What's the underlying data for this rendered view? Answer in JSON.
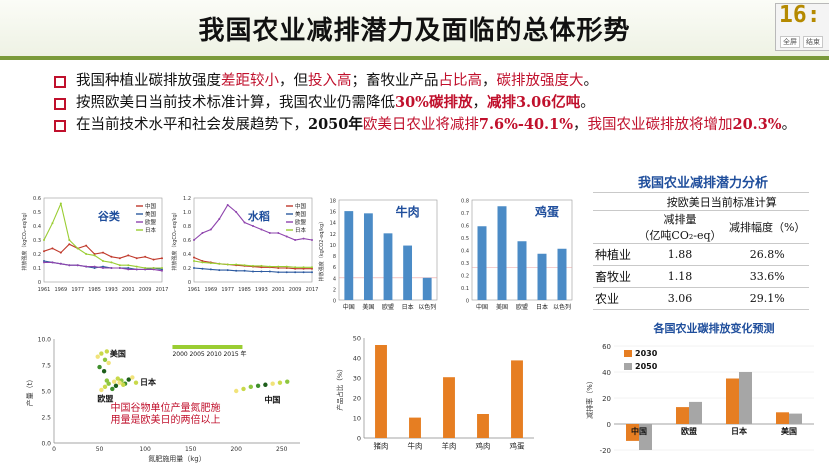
{
  "slide": {
    "title": "我国农业减排潜力及面临的总体形势",
    "clock": "16:",
    "clock_buttons": [
      "全屏",
      "结束"
    ],
    "bullets": [
      {
        "segments": [
          {
            "t": "我国种植业碳排放强度",
            "c": "n"
          },
          {
            "t": "差距较小",
            "c": "r"
          },
          {
            "t": "，但",
            "c": "n"
          },
          {
            "t": "投入高",
            "c": "r"
          },
          {
            "t": "；畜牧业产品",
            "c": "n"
          },
          {
            "t": "占比高",
            "c": "r"
          },
          {
            "t": "，",
            "c": "n"
          },
          {
            "t": "碳排放强度大",
            "c": "r"
          },
          {
            "t": "。",
            "c": "n"
          }
        ]
      },
      {
        "segments": [
          {
            "t": "按照欧美日当前技术标准计算，我国农业仍需降低",
            "c": "n"
          },
          {
            "t": "30%碳排放",
            "c": "rb"
          },
          {
            "t": "，",
            "c": "n"
          },
          {
            "t": "减排3.06亿吨",
            "c": "rb"
          },
          {
            "t": "。",
            "c": "n"
          }
        ]
      },
      {
        "segments": [
          {
            "t": "在当前技术水平和社会发展趋势下，",
            "c": "n"
          },
          {
            "t": "2050年",
            "c": "b"
          },
          {
            "t": "欧美日农业将减排",
            "c": "r"
          },
          {
            "t": "7.6%-40.1%",
            "c": "rb"
          },
          {
            "t": "，",
            "c": "n"
          },
          {
            "t": "我国农业碳排放将增加",
            "c": "r"
          },
          {
            "t": "20.3%",
            "c": "rb"
          },
          {
            "t": "。",
            "c": "n"
          }
        ]
      }
    ]
  },
  "table": {
    "title": "我国农业减排潜力分析",
    "group_header": "按欧美日当前标准计算",
    "col1": "减排量",
    "col1_unit": "（亿吨CO₂-eq）",
    "col2": "减排幅度（%）",
    "rows": [
      {
        "name": "种植业",
        "amount": "1.88",
        "pct": "26.8%"
      },
      {
        "name": "畜牧业",
        "amount": "1.18",
        "pct": "33.6%"
      },
      {
        "name": "农业",
        "amount": "3.06",
        "pct": "29.1%"
      }
    ]
  },
  "chart_data": [
    {
      "type": "line",
      "title": "谷类",
      "ylabel": "排放强度（kgCO₂-eq/kg）",
      "x_ticks": [
        "1961",
        "1969",
        "1977",
        "1985",
        "1993",
        "2001",
        "2009",
        "2017"
      ],
      "ylim": [
        0,
        0.6
      ],
      "y_ticks": [
        "0",
        "0.1",
        "0.2",
        "0.3",
        "0.4",
        "0.5",
        "0.6"
      ],
      "legend": [
        "中国",
        "美国",
        "欧盟",
        "日本"
      ],
      "series": [
        {
          "name": "中国",
          "color": "#c0392b",
          "x": [
            1961,
            1965,
            1969,
            1973,
            1977,
            1981,
            1985,
            1989,
            1993,
            1997,
            2001,
            2005,
            2009,
            2013,
            2017
          ],
          "values": [
            0.22,
            0.24,
            0.21,
            0.27,
            0.24,
            0.26,
            0.2,
            0.21,
            0.18,
            0.17,
            0.19,
            0.17,
            0.18,
            0.16,
            0.17
          ]
        },
        {
          "name": "美国",
          "color": "#2c5aa0",
          "x": [
            1961,
            1965,
            1969,
            1973,
            1977,
            1981,
            1985,
            1989,
            1993,
            1997,
            2001,
            2005,
            2009,
            2013,
            2017
          ],
          "values": [
            0.15,
            0.14,
            0.13,
            0.12,
            0.12,
            0.11,
            0.1,
            0.11,
            0.1,
            0.1,
            0.1,
            0.09,
            0.09,
            0.1,
            0.09
          ]
        },
        {
          "name": "欧盟",
          "color": "#8e44ad",
          "x": [
            1961,
            1965,
            1969,
            1973,
            1977,
            1981,
            1985,
            1989,
            1993,
            1997,
            2001,
            2005,
            2009,
            2013,
            2017
          ],
          "values": [
            0.14,
            0.14,
            0.13,
            0.12,
            0.12,
            0.11,
            0.11,
            0.1,
            0.1,
            0.1,
            0.09,
            0.09,
            0.09,
            0.09,
            0.08
          ]
        },
        {
          "name": "日本",
          "color": "#9acd32",
          "x": [
            1961,
            1965,
            1969,
            1973,
            1977,
            1981,
            1985,
            1989,
            1993,
            1997,
            2001,
            2005,
            2009,
            2013,
            2017
          ],
          "values": [
            0.3,
            0.42,
            0.56,
            0.3,
            0.24,
            0.2,
            0.19,
            0.15,
            0.14,
            0.12,
            0.12,
            0.11,
            0.1,
            0.1,
            0.1
          ]
        }
      ]
    },
    {
      "type": "line",
      "title": "水稻",
      "ylabel": "排放强度（kgCO₂-eq/kg）",
      "x_ticks": [
        "1961",
        "1969",
        "1977",
        "1985",
        "1993",
        "2001",
        "2009",
        "2017"
      ],
      "ylim": [
        0,
        1.2
      ],
      "y_ticks": [
        "0",
        "0.2",
        "0.4",
        "0.6",
        "0.8",
        "1.0",
        "1.2"
      ],
      "legend": [
        "中国",
        "美国",
        "欧盟",
        "日本"
      ],
      "series": [
        {
          "name": "中国",
          "color": "#c0392b",
          "x": [
            1961,
            1965,
            1969,
            1973,
            1977,
            1981,
            1985,
            1989,
            1993,
            1997,
            2001,
            2005,
            2009,
            2013,
            2017
          ],
          "values": [
            0.35,
            0.3,
            0.28,
            0.26,
            0.25,
            0.24,
            0.23,
            0.22,
            0.21,
            0.21,
            0.2,
            0.2,
            0.19,
            0.19,
            0.19
          ]
        },
        {
          "name": "美国",
          "color": "#2c5aa0",
          "x": [
            1961,
            1965,
            1969,
            1973,
            1977,
            1981,
            1985,
            1989,
            1993,
            1997,
            2001,
            2005,
            2009,
            2013,
            2017
          ],
          "values": [
            0.2,
            0.19,
            0.18,
            0.17,
            0.17,
            0.16,
            0.16,
            0.15,
            0.15,
            0.15,
            0.14,
            0.14,
            0.14,
            0.14,
            0.14
          ]
        },
        {
          "name": "欧盟",
          "color": "#8e44ad",
          "x": [
            1961,
            1965,
            1969,
            1973,
            1977,
            1981,
            1985,
            1989,
            1993,
            1997,
            2001,
            2005,
            2009,
            2013,
            2017
          ],
          "values": [
            0.6,
            0.7,
            0.75,
            0.9,
            1.1,
            1.0,
            0.85,
            0.8,
            0.75,
            0.7,
            0.7,
            0.65,
            0.6,
            0.62,
            0.6
          ]
        },
        {
          "name": "日本",
          "color": "#9acd32",
          "x": [
            1961,
            1965,
            1969,
            1973,
            1977,
            1981,
            1985,
            1989,
            1993,
            1997,
            2001,
            2005,
            2009,
            2013,
            2017
          ],
          "values": [
            0.3,
            0.28,
            0.27,
            0.26,
            0.25,
            0.25,
            0.24,
            0.23,
            0.23,
            0.22,
            0.22,
            0.22,
            0.21,
            0.21,
            0.21
          ]
        }
      ]
    },
    {
      "type": "bar",
      "title": "牛肉",
      "ylabel": "排放强度（kgCO2-eq/kg）",
      "categories": [
        "中国",
        "美国",
        "欧盟",
        "日本",
        "以色列"
      ],
      "values": [
        16,
        15.6,
        12,
        9.8,
        4
      ],
      "ylim": [
        0,
        18
      ],
      "y_ticks": [
        "0",
        "2",
        "4",
        "6",
        "8",
        "10",
        "12",
        "14",
        "16",
        "18"
      ],
      "color": "#4b8bc6"
    },
    {
      "type": "bar",
      "title": "鸡蛋",
      "ylabel": "",
      "categories": [
        "中国",
        "美国",
        "欧盟",
        "日本",
        "以色列"
      ],
      "values": [
        0.59,
        0.75,
        0.47,
        0.37,
        0.41
      ],
      "ylim": [
        0,
        0.8
      ],
      "y_ticks": [
        "0",
        "0.1",
        "0.2",
        "0.3",
        "0.4",
        "0.5",
        "0.6",
        "0.7",
        "0.8"
      ],
      "color": "#4b8bc6"
    },
    {
      "type": "scatter",
      "title": "",
      "xlabel": "氮肥施用量（kg）",
      "ylabel": "产量（t）",
      "xlim": [
        0,
        270
      ],
      "ylim": [
        0,
        10
      ],
      "x_ticks": [
        "0",
        "50",
        "100",
        "150",
        "200",
        "250"
      ],
      "y_ticks": [
        "0.0",
        "2.5",
        "5.0",
        "7.5",
        "10.0"
      ],
      "legend_years": [
        "2000",
        "2005",
        "2010",
        "2015",
        "年"
      ],
      "labels": [
        "美国",
        "日本",
        "欧盟",
        "中国"
      ],
      "annotation": [
        "中国谷物单位产量氮肥施",
        "用量是欧美日的两倍以上"
      ],
      "groups": [
        {
          "name": "美国",
          "x": [
            48,
            52,
            56,
            50,
            55,
            60,
            58
          ],
          "y": [
            8.3,
            8.6,
            8.0,
            7.3,
            6.9,
            7.7,
            8.8
          ]
        },
        {
          "name": "日本",
          "x": [
            66,
            70,
            74,
            78,
            82,
            86,
            90
          ],
          "y": [
            5.9,
            6.2,
            6.0,
            5.7,
            6.1,
            6.3,
            5.8
          ]
        },
        {
          "name": "欧盟",
          "x": [
            52,
            56,
            60,
            64,
            68,
            72,
            76,
            58
          ],
          "y": [
            5.1,
            5.4,
            5.7,
            5.2,
            5.5,
            5.8,
            5.6,
            6.0
          ]
        },
        {
          "name": "中国",
          "x": [
            200,
            208,
            216,
            224,
            232,
            240,
            248,
            256
          ],
          "y": [
            5.0,
            5.2,
            5.4,
            5.5,
            5.6,
            5.7,
            5.8,
            5.9
          ]
        }
      ]
    },
    {
      "type": "bar",
      "title": "",
      "ylabel": "产品占比（%）",
      "categories": [
        "猪肉",
        "牛肉",
        "羊肉",
        "鸡肉",
        "鸡蛋"
      ],
      "values": [
        46.5,
        10.2,
        30.4,
        12.0,
        38.8
      ],
      "ylim": [
        0,
        50
      ],
      "y_ticks": [
        "0",
        "10",
        "20",
        "30",
        "40",
        "50"
      ],
      "color": "#e67e22"
    },
    {
      "type": "bar",
      "title": "各国农业碳排放变化预测",
      "ylabel": "减排率（%）",
      "categories": [
        "中国",
        "欧盟",
        "日本",
        "美国"
      ],
      "ylim": [
        -20,
        60
      ],
      "y_ticks": [
        "-20",
        "0",
        "20",
        "40",
        "60"
      ],
      "series": [
        {
          "name": "2030",
          "color": "#e67e22",
          "values": [
            -13,
            13,
            35,
            9
          ]
        },
        {
          "name": "2050",
          "color": "#a6a6a6",
          "values": [
            -20,
            17,
            40,
            8
          ]
        }
      ]
    }
  ]
}
